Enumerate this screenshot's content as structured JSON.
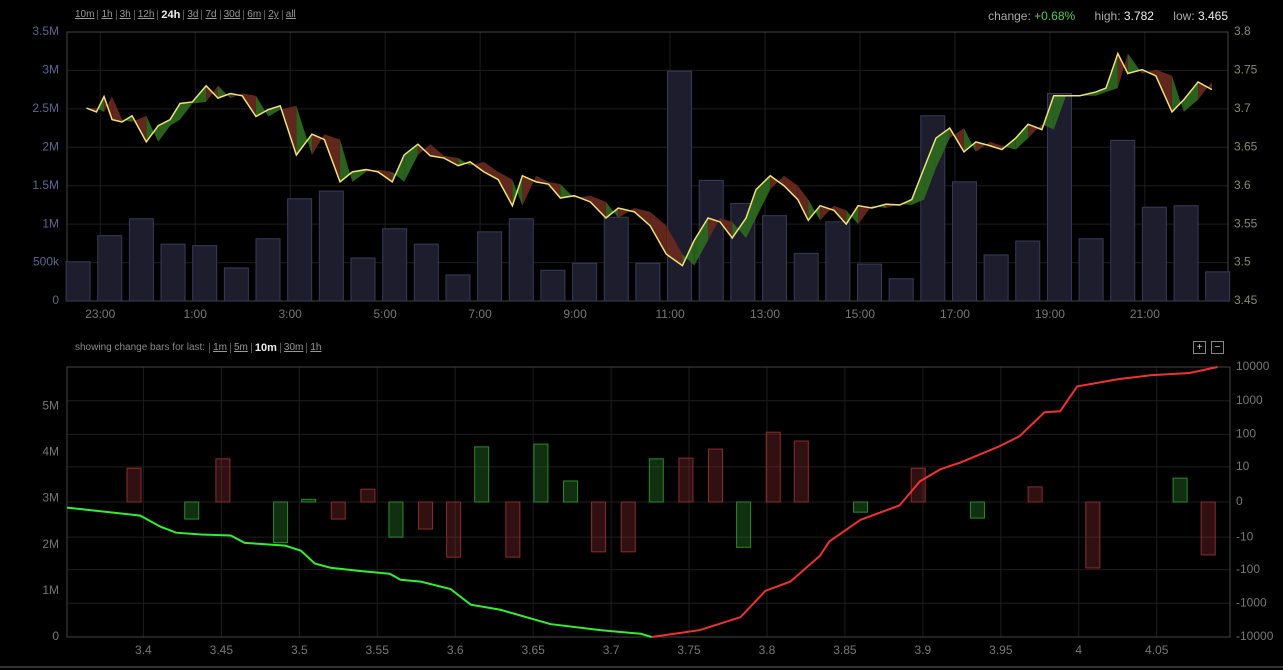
{
  "toolbar": {
    "ranges": [
      "10m",
      "1h",
      "3h",
      "12h",
      "24h",
      "3d",
      "7d",
      "30d",
      "6m",
      "2y",
      "all"
    ],
    "active": 4
  },
  "stats": {
    "change_label": "change:",
    "change": "+0.68%",
    "high_label": "high:",
    "high": "3.782",
    "low_label": "low:",
    "low": "3.465"
  },
  "depth_controls": {
    "label": "showing change bars for last:",
    "options": [
      "1m",
      "5m",
      "10m",
      "30m",
      "1h"
    ],
    "active": 2,
    "buttons": [
      "+",
      "−"
    ]
  },
  "chart_data": [
    {
      "type": "volume-price",
      "grid": true,
      "xlim": [
        22.3,
        46.75
      ],
      "xticks": [
        {
          "value": 23,
          "label": "23:00"
        },
        {
          "value": 25,
          "label": "1:00"
        },
        {
          "value": 27,
          "label": "3:00"
        },
        {
          "value": 29,
          "label": "5:00"
        },
        {
          "value": 31,
          "label": "7:00"
        },
        {
          "value": 33,
          "label": "9:00"
        },
        {
          "value": 35,
          "label": "11:00"
        },
        {
          "value": 37,
          "label": "13:00"
        },
        {
          "value": 39,
          "label": "15:00"
        },
        {
          "value": 41,
          "label": "17:00"
        },
        {
          "value": 43,
          "label": "19:00"
        },
        {
          "value": 45,
          "label": "21:00"
        }
      ],
      "ylim": [
        0,
        3500000
      ],
      "yticks": [
        0,
        {
          "value": 500000,
          "label": "500k"
        },
        {
          "value": 1000000,
          "label": "1M"
        },
        {
          "value": 1500000,
          "label": "1.5M"
        },
        {
          "value": 2000000,
          "label": "2M"
        },
        {
          "value": 2500000,
          "label": "2.5M"
        },
        {
          "value": 3000000,
          "label": "3M"
        },
        {
          "value": 3500000,
          "label": "3.5M"
        }
      ],
      "y2lim": [
        3.45,
        3.8
      ],
      "y2ticks": [
        3.45,
        3.5,
        3.55,
        3.6,
        3.65,
        3.7,
        3.75,
        3.8
      ],
      "bars": {
        "color": "#1d1d2e",
        "x": [
          22.533,
          23.2,
          23.867,
          24.533,
          25.2,
          25.867,
          26.533,
          27.2,
          27.867,
          28.533,
          29.2,
          29.867,
          30.533,
          31.2,
          31.867,
          32.533,
          33.2,
          33.867,
          34.533,
          35.2,
          35.867,
          36.533,
          37.2,
          37.867,
          38.533,
          39.2,
          39.867,
          40.533,
          41.2,
          41.867,
          42.533,
          43.2,
          43.867,
          44.533,
          45.2,
          45.867,
          46.533
        ],
        "values": [
          510000,
          850000,
          1070000,
          740000,
          720000,
          430000,
          810000,
          1330000,
          1430000,
          560000,
          940000,
          740000,
          340000,
          900000,
          1070000,
          400000,
          490000,
          1090000,
          490000,
          2990000,
          1570000,
          1270000,
          1110000,
          620000,
          1030000,
          480000,
          290000,
          2410000,
          1550000,
          600000,
          780000,
          2700000,
          810000,
          2090000,
          1220000,
          1240000,
          380000
        ]
      },
      "series": [
        {
          "color": "#f0e27a",
          "axis": "y2",
          "x": [
            22.71,
            22.92,
            23.08,
            23.25,
            23.46,
            23.67,
            23.97,
            24.22,
            24.47,
            24.68,
            24.94,
            25.23,
            25.48,
            25.74,
            25.99,
            26.28,
            26.54,
            26.79,
            27.13,
            27.46,
            27.72,
            28.05,
            28.31,
            28.6,
            28.85,
            29.15,
            29.4,
            29.69,
            29.95,
            30.24,
            30.54,
            30.79,
            31.08,
            31.38,
            31.68,
            31.89,
            32.18,
            32.44,
            32.69,
            32.98,
            33.32,
            33.65,
            33.91,
            34.25,
            34.58,
            34.92,
            35.26,
            35.51,
            35.8,
            36.05,
            36.31,
            36.6,
            36.81,
            37.11,
            37.4,
            37.69,
            37.91,
            38.16,
            38.45,
            38.71,
            38.96,
            39.25,
            39.55,
            39.84,
            40.09,
            40.35,
            40.6,
            40.89,
            41.19,
            41.44,
            41.74,
            41.99,
            42.28,
            42.54,
            42.83,
            43.08,
            43.34,
            43.63,
            43.97,
            44.18,
            44.43,
            44.64,
            44.94,
            45.23,
            45.57,
            45.82,
            46.12,
            46.41
          ],
          "values": [
            3.701,
            3.696,
            3.716,
            3.686,
            3.683,
            3.691,
            3.657,
            3.678,
            3.686,
            3.707,
            3.709,
            3.73,
            3.714,
            3.72,
            3.717,
            3.69,
            3.699,
            3.704,
            3.64,
            3.667,
            3.66,
            3.605,
            3.618,
            3.621,
            3.618,
            3.605,
            3.64,
            3.654,
            3.639,
            3.636,
            3.626,
            3.631,
            3.618,
            3.608,
            3.574,
            3.613,
            3.605,
            3.602,
            3.584,
            3.587,
            3.579,
            3.558,
            3.571,
            3.566,
            3.548,
            3.511,
            3.496,
            3.529,
            3.558,
            3.553,
            3.532,
            3.558,
            3.595,
            3.613,
            3.6,
            3.582,
            3.555,
            3.574,
            3.568,
            3.55,
            3.574,
            3.571,
            3.576,
            3.575,
            3.582,
            3.623,
            3.662,
            3.675,
            3.644,
            3.657,
            3.652,
            3.647,
            3.662,
            3.68,
            3.673,
            3.717,
            3.717,
            3.717,
            3.722,
            3.727,
            3.772,
            3.746,
            3.751,
            3.743,
            3.696,
            3.712,
            3.735,
            3.725
          ]
        }
      ],
      "band": {
        "axis": "y2",
        "up_color": "#2f6b1f",
        "down_color": "#6b2a1f",
        "values": [
          3.701,
          3.701,
          3.696,
          3.716,
          3.686,
          3.683,
          3.691,
          3.657,
          3.678,
          3.686,
          3.707,
          3.709,
          3.73,
          3.714,
          3.72,
          3.717,
          3.69,
          3.699,
          3.704,
          3.64,
          3.667,
          3.66,
          3.605,
          3.618,
          3.621,
          3.618,
          3.605,
          3.64,
          3.654,
          3.639,
          3.636,
          3.626,
          3.631,
          3.618,
          3.608,
          3.574,
          3.613,
          3.605,
          3.602,
          3.584,
          3.587,
          3.579,
          3.558,
          3.571,
          3.566,
          3.548,
          3.511,
          3.496,
          3.529,
          3.558,
          3.553,
          3.532,
          3.558,
          3.595,
          3.613,
          3.6,
          3.582,
          3.555,
          3.574,
          3.568,
          3.55,
          3.574,
          3.571,
          3.576,
          3.575,
          3.582,
          3.623,
          3.662,
          3.675,
          3.644,
          3.657,
          3.652,
          3.647,
          3.662,
          3.68,
          3.673,
          3.717,
          3.717,
          3.717,
          3.722,
          3.727,
          3.772,
          3.746,
          3.751,
          3.743,
          3.696,
          3.712,
          3.735
        ]
      }
    },
    {
      "type": "depth",
      "grid": true,
      "xlim": [
        3.351,
        4.097
      ],
      "xticks": [
        3.4,
        3.45,
        3.5,
        3.55,
        3.6,
        3.65,
        3.7,
        3.75,
        3.8,
        3.85,
        3.9,
        3.95,
        4,
        4.05
      ],
      "ylim": [
        0,
        5850000
      ],
      "yticks": [
        0,
        {
          "value": 1000000,
          "label": "1M"
        },
        {
          "value": 2000000,
          "label": "2M"
        },
        {
          "value": 3000000,
          "label": "3M"
        },
        {
          "value": 4000000,
          "label": "4M"
        },
        {
          "value": 5000000,
          "label": "5M"
        }
      ],
      "y2lim": [
        -10000,
        10000
      ],
      "y2scale": "symlog",
      "y2ticks": [
        10000,
        1000,
        100,
        10,
        0,
        -10,
        -100,
        -1000,
        -10000
      ],
      "bars": {
        "axis": "y2",
        "x": [
          3.394,
          3.431,
          3.451,
          3.488,
          3.506,
          3.525,
          3.544,
          3.562,
          3.581,
          3.599,
          3.617,
          3.637,
          3.655,
          3.674,
          3.692,
          3.711,
          3.729,
          3.748,
          3.767,
          3.785,
          3.804,
          3.822,
          3.86,
          3.897,
          3.935,
          3.972,
          4.009,
          4.065,
          4.083
        ],
        "values": [
          9,
          -2.2,
          18,
          -15,
          0.2,
          -2.2,
          1.4,
          -10,
          -5.3,
          -42,
          42,
          -42,
          51,
          3.2,
          -29,
          -29,
          18,
          19,
          36,
          -21,
          116,
          63,
          -1,
          9,
          -2,
          1.8,
          -89,
          4.1,
          -36
        ],
        "colors": [
          "#8a2d2d",
          "#2d8a2d",
          "#8a2d2d",
          "#2d8a2d",
          "#2d8a2d",
          "#8a2d2d",
          "#8a2d2d",
          "#2d8a2d",
          "#8a2d2d",
          "#8a2d2d",
          "#2d8a2d",
          "#8a2d2d",
          "#2d8a2d",
          "#2d8a2d",
          "#8a2d2d",
          "#8a2d2d",
          "#2d8a2d",
          "#8a2d2d",
          "#8a2d2d",
          "#2d8a2d",
          "#8a2d2d",
          "#8a2d2d",
          "#2d8a2d",
          "#8a2d2d",
          "#2d8a2d",
          "#8a2d2d",
          "#8a2d2d",
          "#2d8a2d",
          "#8a2d2d"
        ]
      },
      "series": [
        {
          "color": "#33ee33",
          "x": [
            3.351,
            3.398,
            3.411,
            3.421,
            3.437,
            3.456,
            3.465,
            3.491,
            3.501,
            3.51,
            3.52,
            3.539,
            3.558,
            3.565,
            3.578,
            3.597,
            3.61,
            3.629,
            3.661,
            3.693,
            3.719,
            3.726
          ],
          "values": [
            2804000,
            2630000,
            2390000,
            2260000,
            2220000,
            2200000,
            2040000,
            1980000,
            1870000,
            1590000,
            1500000,
            1430000,
            1370000,
            1240000,
            1200000,
            1040000,
            700000,
            590000,
            280000,
            150000,
            70000,
            0
          ]
        },
        {
          "color": "#ee3333",
          "x": [
            3.726,
            3.757,
            3.783,
            3.799,
            3.815,
            3.834,
            3.84,
            3.86,
            3.885,
            3.898,
            3.911,
            3.924,
            3.949,
            3.962,
            3.978,
            3.988,
            3.999,
            4.026,
            4.046,
            4.071,
            4.089
          ],
          "values": [
            0,
            150000,
            430000,
            1000000,
            1200000,
            1760000,
            2070000,
            2540000,
            2850000,
            3370000,
            3630000,
            3780000,
            4130000,
            4350000,
            4870000,
            4890000,
            5430000,
            5590000,
            5670000,
            5720000,
            5850000
          ]
        }
      ]
    }
  ]
}
